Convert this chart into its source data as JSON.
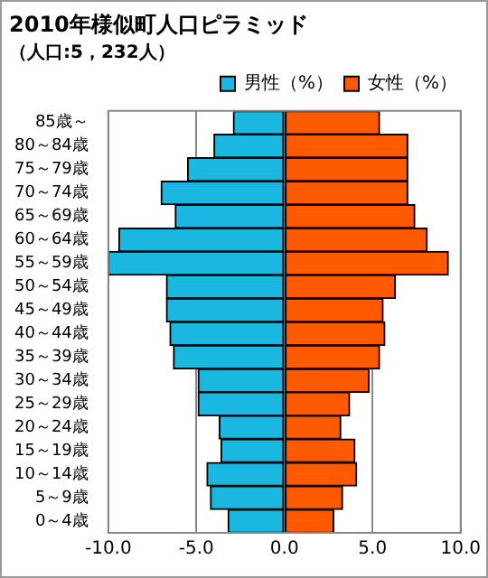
{
  "chart_data": {
    "type": "bar",
    "orientation": "horizontal",
    "stacked": true,
    "title": "2010年様似町人口ピラミッド",
    "subtitle": "（人口:5，232人）",
    "categories": [
      "85歳～",
      "80～84歳",
      "75～79歳",
      "70～74歳",
      "65～69歳",
      "60～64歳",
      "55～59歳",
      "50～54歳",
      "45～49歳",
      "40～44歳",
      "35～39歳",
      "30～34歳",
      "25～29歳",
      "20～24歳",
      "15～19歳",
      "10～14歳",
      "5～9歳",
      "0～4歳"
    ],
    "series": [
      {
        "name": "男性（%）",
        "color": "#1ab8e0",
        "values": [
          -2.9,
          -4.0,
          -5.5,
          -7.0,
          -6.2,
          -9.4,
          -10.0,
          -6.7,
          -6.7,
          -6.5,
          -6.3,
          -4.9,
          -4.9,
          -3.7,
          -3.6,
          -4.4,
          -4.2,
          -3.2
        ]
      },
      {
        "name": "女性（%）",
        "color": "#ff5a00",
        "values": [
          5.4,
          7.0,
          7.0,
          7.0,
          7.4,
          8.1,
          9.3,
          6.3,
          5.6,
          5.7,
          5.4,
          4.8,
          3.7,
          3.2,
          4.0,
          4.1,
          3.3,
          2.8
        ]
      }
    ],
    "xlim": [
      -10,
      10
    ],
    "xticks": [
      {
        "value": -10,
        "label": "-10.0"
      },
      {
        "value": -5,
        "label": "-5.0"
      },
      {
        "value": 0,
        "label": "0.0"
      },
      {
        "value": 5,
        "label": "5.0"
      },
      {
        "value": 10,
        "label": "10.0"
      }
    ],
    "grid": "x",
    "legend": "top right"
  }
}
